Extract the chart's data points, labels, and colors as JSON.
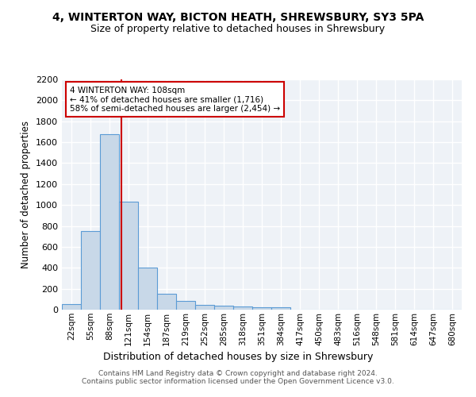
{
  "title1": "4, WINTERTON WAY, BICTON HEATH, SHREWSBURY, SY3 5PA",
  "title2": "Size of property relative to detached houses in Shrewsbury",
  "xlabel": "Distribution of detached houses by size in Shrewsbury",
  "ylabel": "Number of detached properties",
  "bar_labels": [
    "22sqm",
    "55sqm",
    "88sqm",
    "121sqm",
    "154sqm",
    "187sqm",
    "219sqm",
    "252sqm",
    "285sqm",
    "318sqm",
    "351sqm",
    "384sqm",
    "417sqm",
    "450sqm",
    "483sqm",
    "516sqm",
    "548sqm",
    "581sqm",
    "614sqm",
    "647sqm",
    "680sqm"
  ],
  "bar_values": [
    50,
    750,
    1680,
    1030,
    400,
    150,
    85,
    45,
    35,
    30,
    20,
    20,
    0,
    0,
    0,
    0,
    0,
    0,
    0,
    0,
    0
  ],
  "bar_color": "#c8d8e8",
  "bar_edge_color": "#5b9bd5",
  "ylim": [
    0,
    2200
  ],
  "yticks": [
    0,
    200,
    400,
    600,
    800,
    1000,
    1200,
    1400,
    1600,
    1800,
    2000,
    2200
  ],
  "vline_color": "#cc0000",
  "annotation_text": "4 WINTERTON WAY: 108sqm\n← 41% of detached houses are smaller (1,716)\n58% of semi-detached houses are larger (2,454) →",
  "annotation_box_color": "#ffffff",
  "annotation_edge_color": "#cc0000",
  "footer_text": "Contains HM Land Registry data © Crown copyright and database right 2024.\nContains public sector information licensed under the Open Government Licence v3.0.",
  "bg_color": "#eef2f7",
  "grid_color": "#ffffff",
  "title1_fontsize": 10,
  "title2_fontsize": 9
}
